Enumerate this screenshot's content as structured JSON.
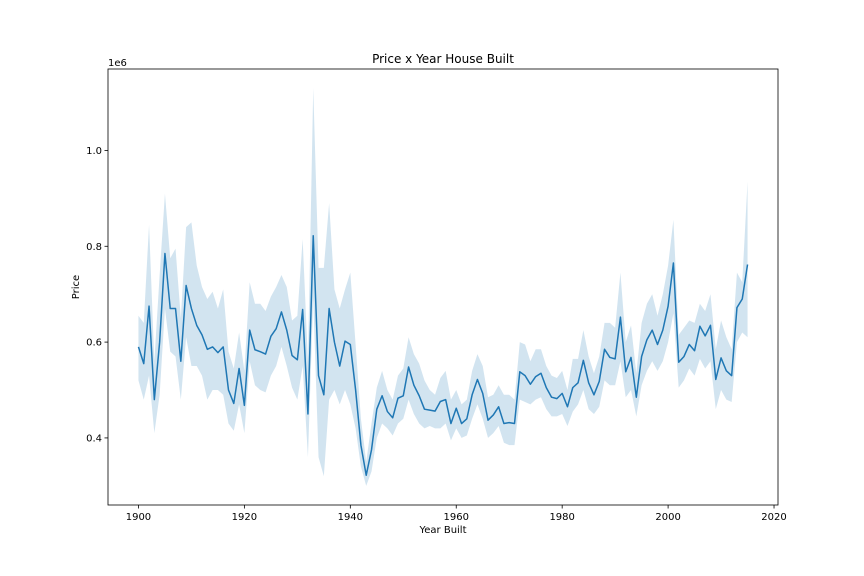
{
  "chart_data": {
    "type": "line",
    "title": "Price x Year House Built",
    "xlabel": "Year Built",
    "ylabel": "Price",
    "y_offset_label": "1e6",
    "xlim": [
      1894.25,
      2020.75
    ],
    "ylim": [
      0.26,
      1.17
    ],
    "x_ticks": [
      1900,
      1920,
      1940,
      1960,
      1980,
      2000,
      2020
    ],
    "y_ticks": [
      0.4,
      0.6,
      0.8,
      1.0
    ],
    "y_tick_labels": [
      "0.4",
      "0.6",
      "0.8",
      "1.0"
    ],
    "grid": false,
    "colors": {
      "line": "#1f77b4",
      "band": "#1f77b4",
      "band_opacity": 0.2
    },
    "series": [
      {
        "x": [
          1900,
          1901,
          1902,
          1903,
          1904,
          1905,
          1906,
          1907,
          1908,
          1909,
          1910,
          1911,
          1912,
          1913,
          1914,
          1915,
          1916,
          1917,
          1918,
          1919,
          1920,
          1921,
          1922,
          1923,
          1924,
          1925,
          1926,
          1927,
          1928,
          1929,
          1930,
          1931,
          1932,
          1933,
          1934,
          1935,
          1936,
          1937,
          1938,
          1939,
          1940,
          1941,
          1942,
          1943,
          1944,
          1945,
          1946,
          1947,
          1948,
          1949,
          1950,
          1951,
          1952,
          1953,
          1954,
          1955,
          1956,
          1957,
          1958,
          1959,
          1960,
          1961,
          1962,
          1963,
          1964,
          1965,
          1966,
          1967,
          1968,
          1969,
          1970,
          1971,
          1972,
          1973,
          1974,
          1975,
          1976,
          1977,
          1978,
          1979,
          1980,
          1981,
          1982,
          1983,
          1984,
          1985,
          1986,
          1987,
          1988,
          1989,
          1990,
          1991,
          1992,
          1993,
          1994,
          1995,
          1996,
          1997,
          1998,
          1999,
          2000,
          2001,
          2002,
          2003,
          2004,
          2005,
          2006,
          2007,
          2008,
          2009,
          2010,
          2011,
          2012,
          2013,
          2014,
          2015
        ],
        "y": [
          0.59,
          0.555,
          0.675,
          0.48,
          0.6,
          0.785,
          0.67,
          0.67,
          0.56,
          0.718,
          0.67,
          0.635,
          0.615,
          0.585,
          0.59,
          0.578,
          0.59,
          0.5,
          0.472,
          0.545,
          0.468,
          0.625,
          0.584,
          0.58,
          0.575,
          0.612,
          0.628,
          0.663,
          0.625,
          0.572,
          0.563,
          0.668,
          0.45,
          0.822,
          0.53,
          0.49,
          0.67,
          0.6,
          0.55,
          0.602,
          0.595,
          0.5,
          0.385,
          0.322,
          0.375,
          0.46,
          0.488,
          0.455,
          0.442,
          0.483,
          0.488,
          0.548,
          0.51,
          0.488,
          0.46,
          0.458,
          0.456,
          0.476,
          0.48,
          0.43,
          0.462,
          0.43,
          0.44,
          0.49,
          0.522,
          0.493,
          0.437,
          0.448,
          0.465,
          0.43,
          0.432,
          0.43,
          0.538,
          0.53,
          0.512,
          0.528,
          0.535,
          0.505,
          0.485,
          0.482,
          0.493,
          0.465,
          0.505,
          0.515,
          0.562,
          0.515,
          0.49,
          0.518,
          0.585,
          0.568,
          0.565,
          0.652,
          0.538,
          0.568,
          0.485,
          0.57,
          0.605,
          0.625,
          0.595,
          0.625,
          0.675,
          0.765,
          0.558,
          0.57,
          0.595,
          0.582,
          0.633,
          0.613,
          0.635,
          0.522,
          0.567,
          0.54,
          0.53,
          0.672,
          0.69,
          0.762
        ],
        "lower": [
          0.52,
          0.48,
          0.53,
          0.41,
          0.49,
          0.67,
          0.58,
          0.57,
          0.48,
          0.61,
          0.55,
          0.55,
          0.53,
          0.48,
          0.5,
          0.5,
          0.49,
          0.43,
          0.415,
          0.47,
          0.41,
          0.56,
          0.51,
          0.5,
          0.495,
          0.53,
          0.55,
          0.59,
          0.55,
          0.505,
          0.48,
          0.55,
          0.36,
          0.69,
          0.36,
          0.32,
          0.48,
          0.5,
          0.47,
          0.5,
          0.47,
          0.42,
          0.34,
          0.3,
          0.33,
          0.4,
          0.43,
          0.42,
          0.405,
          0.43,
          0.44,
          0.48,
          0.45,
          0.43,
          0.42,
          0.425,
          0.42,
          0.42,
          0.43,
          0.395,
          0.42,
          0.4,
          0.405,
          0.44,
          0.47,
          0.44,
          0.4,
          0.41,
          0.425,
          0.39,
          0.385,
          0.385,
          0.48,
          0.475,
          0.47,
          0.48,
          0.485,
          0.46,
          0.445,
          0.445,
          0.45,
          0.425,
          0.455,
          0.47,
          0.5,
          0.46,
          0.45,
          0.465,
          0.52,
          0.51,
          0.51,
          0.56,
          0.485,
          0.5,
          0.445,
          0.51,
          0.54,
          0.56,
          0.54,
          0.56,
          0.6,
          0.66,
          0.505,
          0.52,
          0.545,
          0.53,
          0.565,
          0.545,
          0.56,
          0.46,
          0.5,
          0.48,
          0.475,
          0.6,
          0.62,
          0.61
        ],
        "upper": [
          0.655,
          0.64,
          0.845,
          0.56,
          0.74,
          0.91,
          0.775,
          0.795,
          0.65,
          0.84,
          0.85,
          0.76,
          0.715,
          0.69,
          0.705,
          0.67,
          0.71,
          0.58,
          0.545,
          0.62,
          0.54,
          0.725,
          0.68,
          0.68,
          0.665,
          0.695,
          0.715,
          0.74,
          0.715,
          0.645,
          0.655,
          0.815,
          0.56,
          1.13,
          0.755,
          0.755,
          0.89,
          0.71,
          0.67,
          0.71,
          0.745,
          0.595,
          0.44,
          0.35,
          0.43,
          0.505,
          0.54,
          0.5,
          0.48,
          0.53,
          0.545,
          0.61,
          0.575,
          0.555,
          0.52,
          0.5,
          0.49,
          0.525,
          0.54,
          0.48,
          0.5,
          0.47,
          0.48,
          0.54,
          0.575,
          0.55,
          0.485,
          0.49,
          0.51,
          0.49,
          0.49,
          0.48,
          0.6,
          0.595,
          0.56,
          0.585,
          0.585,
          0.55,
          0.53,
          0.525,
          0.54,
          0.5,
          0.565,
          0.565,
          0.625,
          0.57,
          0.535,
          0.57,
          0.64,
          0.64,
          0.63,
          0.745,
          0.6,
          0.635,
          0.535,
          0.64,
          0.68,
          0.7,
          0.655,
          0.7,
          0.76,
          0.855,
          0.615,
          0.63,
          0.645,
          0.64,
          0.68,
          0.665,
          0.7,
          0.585,
          0.645,
          0.61,
          0.585,
          0.745,
          0.725,
          0.935
        ]
      }
    ]
  }
}
